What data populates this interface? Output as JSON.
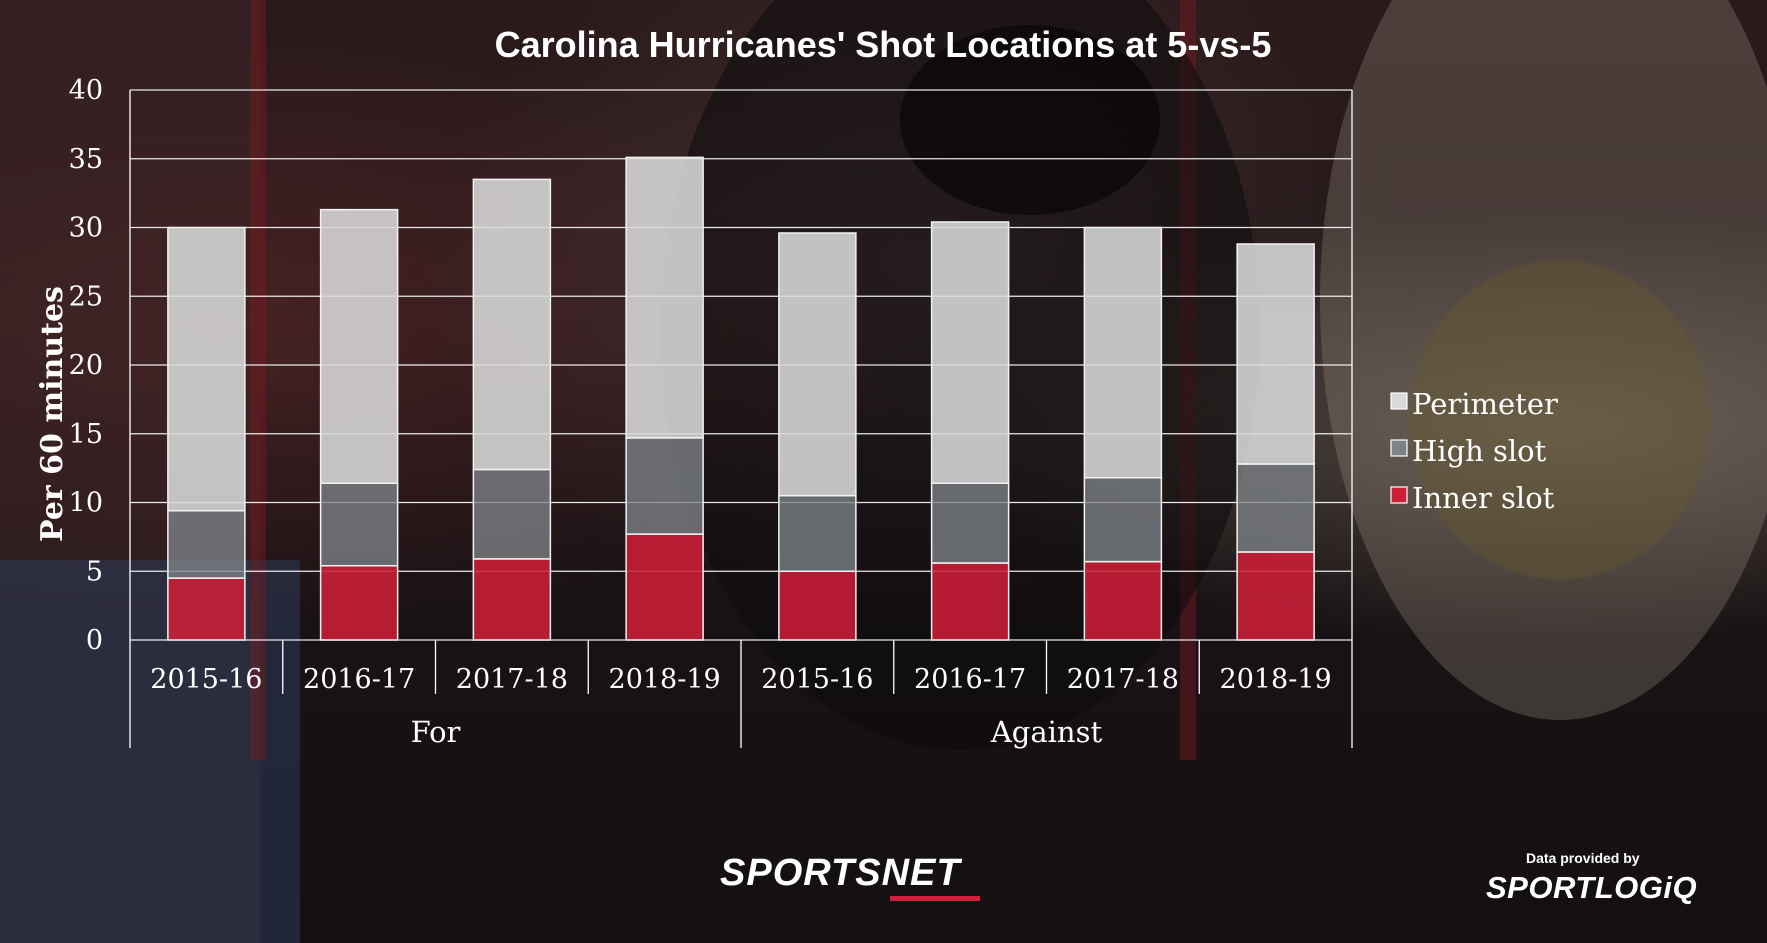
{
  "chart_data": {
    "type": "bar",
    "stacked": true,
    "title": "Carolina Hurricanes' Shot Locations at 5-vs-5",
    "ylabel": "Per 60 minutes",
    "ylim": [
      0,
      40
    ],
    "yticks": [
      0,
      5,
      10,
      15,
      20,
      25,
      30,
      35,
      40
    ],
    "grid": true,
    "legend_position": "right",
    "groups": [
      {
        "label": "For",
        "categories": [
          "2015-16",
          "2016-17",
          "2017-18",
          "2018-19"
        ]
      },
      {
        "label": "Against",
        "categories": [
          "2015-16",
          "2016-17",
          "2017-18",
          "2018-19"
        ]
      }
    ],
    "categories": [
      "2015-16",
      "2016-17",
      "2017-18",
      "2018-19",
      "2015-16",
      "2016-17",
      "2017-18",
      "2018-19"
    ],
    "series": [
      {
        "name": "Inner slot",
        "color": "#cc1f38",
        "values": [
          4.5,
          5.4,
          5.9,
          7.7,
          5.0,
          5.6,
          5.7,
          6.4
        ]
      },
      {
        "name": "High slot",
        "color": "#7d8388",
        "values": [
          4.9,
          6.0,
          6.5,
          7.0,
          5.5,
          5.8,
          6.1,
          6.4
        ]
      },
      {
        "name": "Perimeter",
        "color": "#d9d9d9",
        "values": [
          20.6,
          19.9,
          21.1,
          20.4,
          19.1,
          19.0,
          18.2,
          16.0
        ]
      }
    ]
  },
  "branding": {
    "network_logo": "SPORTSNET",
    "credit_caption": "Data provided by",
    "credit_logo": "SPORTLOGiQ"
  }
}
